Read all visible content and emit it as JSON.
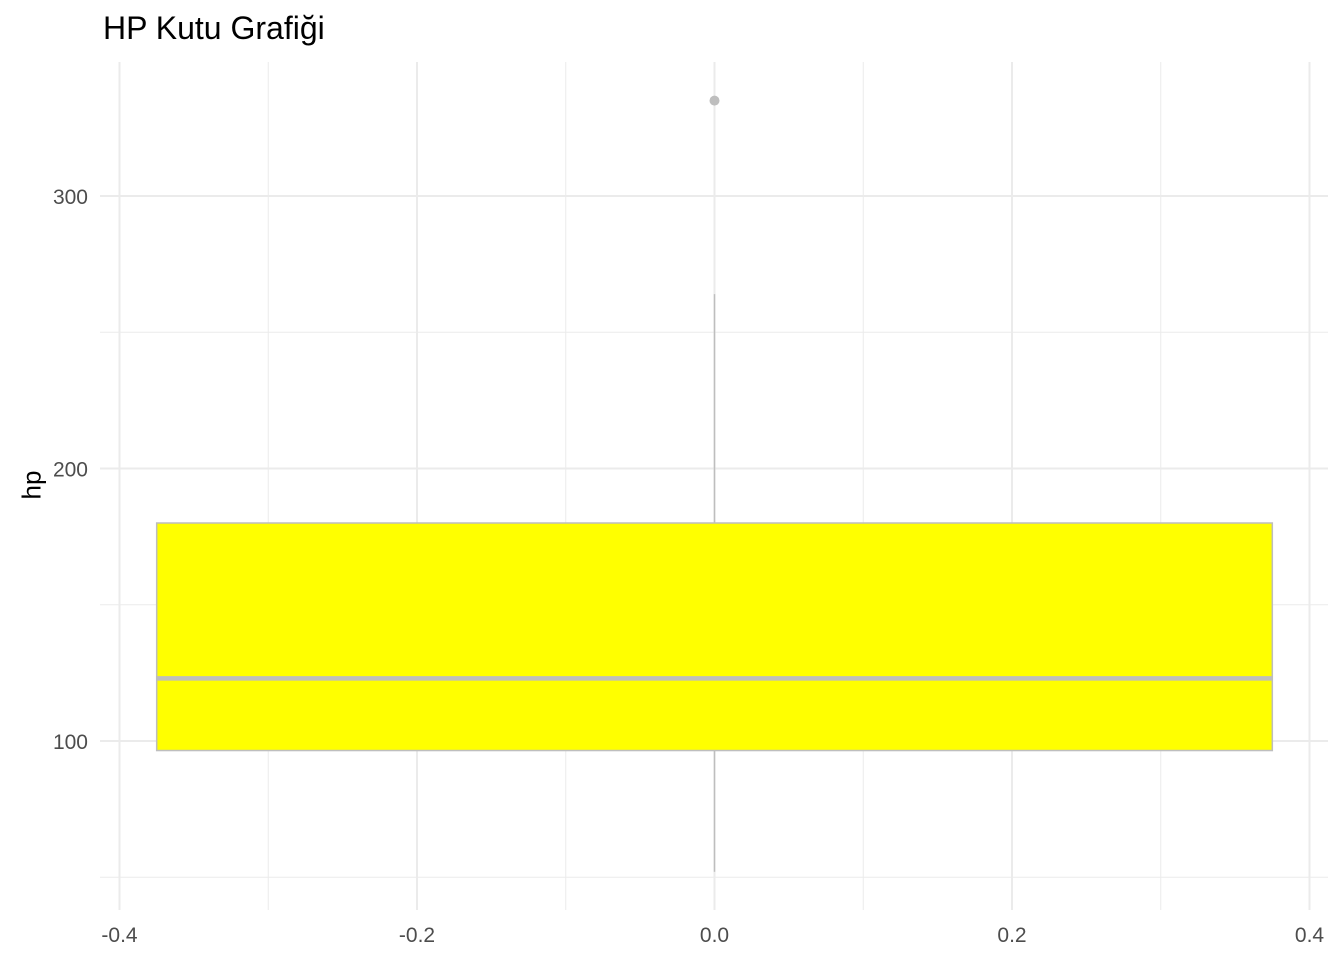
{
  "chart_data": {
    "type": "boxplot",
    "title": "HP Kutu Grafiği",
    "xlabel": "",
    "ylabel": "hp",
    "xlim": [
      -0.4,
      0.4
    ],
    "ylim": [
      40,
      345
    ],
    "x_ticks": [
      -0.4,
      -0.2,
      0.0,
      0.2,
      0.4
    ],
    "x_tick_labels": [
      "-0.4",
      "-0.2",
      "0.0",
      "0.2",
      "0.4"
    ],
    "y_ticks": [
      100,
      200,
      300
    ],
    "y_tick_labels": [
      "100",
      "200",
      "300"
    ],
    "y_minor_ticks": [
      50,
      150,
      250
    ],
    "grid": true,
    "box": {
      "x_center": 0.0,
      "x_range": [
        -0.375,
        0.375
      ],
      "whisker_low": 52,
      "q1": 96.5,
      "median": 123,
      "q3": 180,
      "whisker_high": 264,
      "outliers": [
        335
      ]
    },
    "colors": {
      "fill": "#ffff00",
      "outline": "#bebebe",
      "grid": "#ebebeb",
      "outlier": "#bebebe"
    }
  }
}
